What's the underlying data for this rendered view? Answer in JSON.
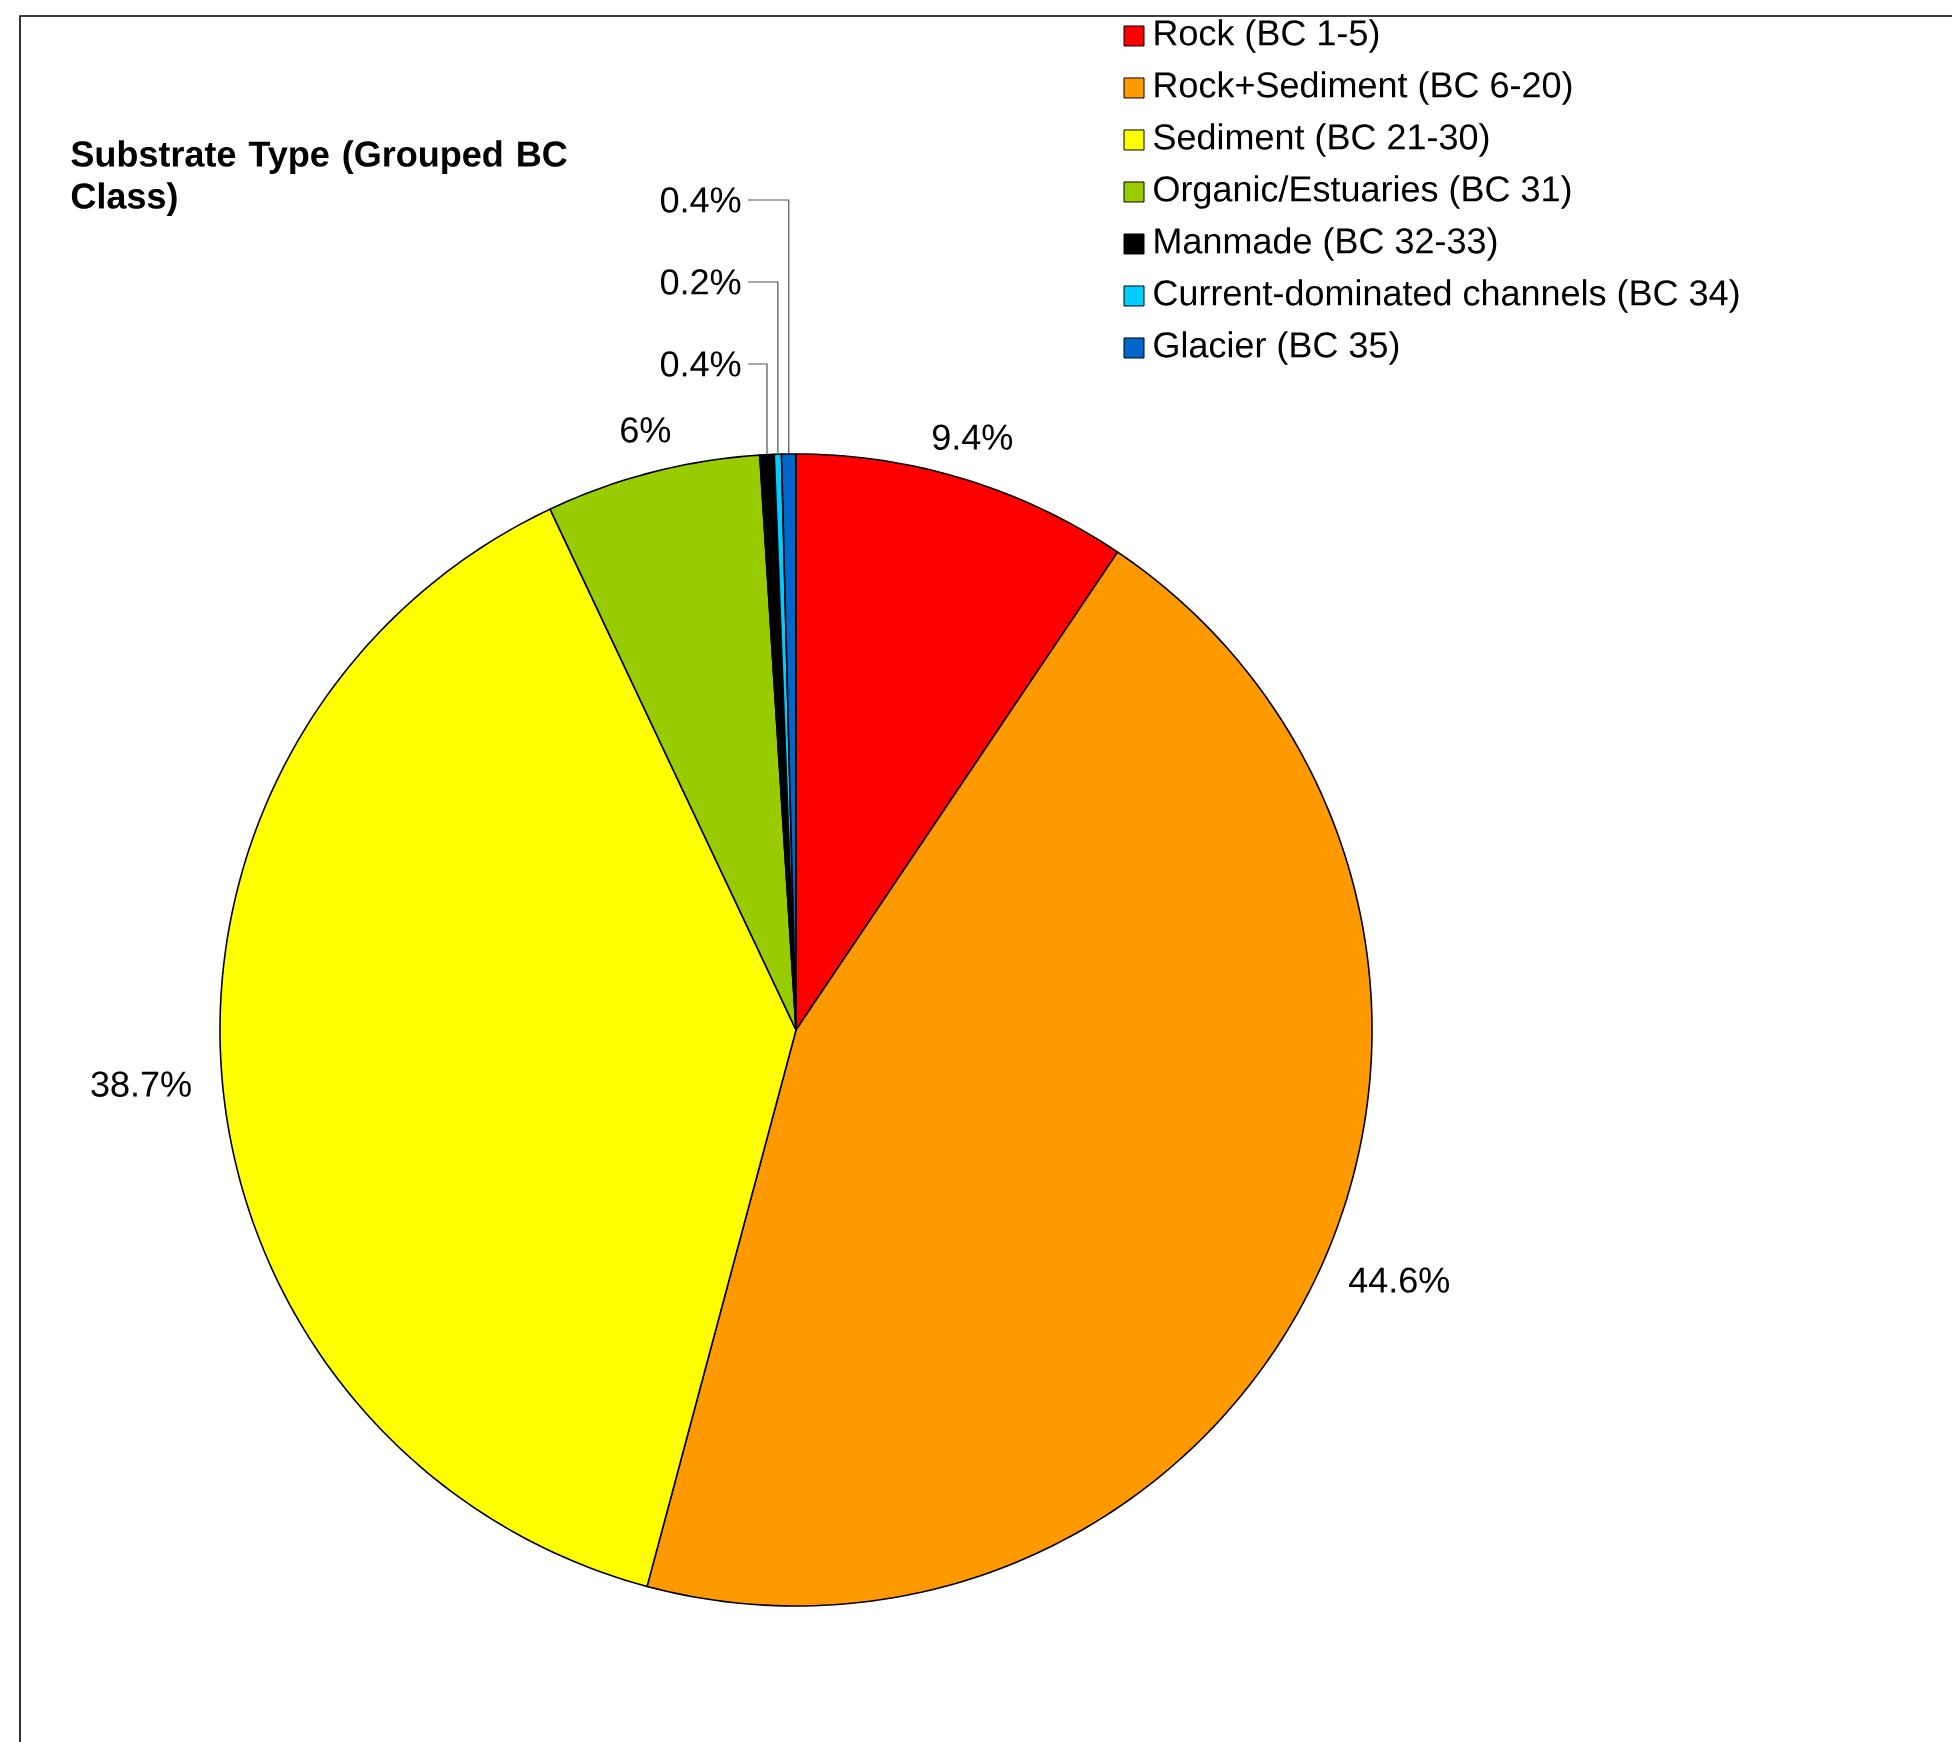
{
  "chart_data": {
    "type": "pie",
    "title": "Substrate Type (Grouped BC Class)",
    "categories": [
      "Rock (BC 1-5)",
      "Rock+Sediment (BC 6-20)",
      "Sediment (BC 21-30)",
      "Organic/Estuaries (BC 31)",
      "Manmade (BC 32-33)",
      "Current-dominated channels (BC 34)",
      "Glacier (BC 35)"
    ],
    "values": [
      9.4,
      44.6,
      38.7,
      6,
      0.4,
      0.2,
      0.4
    ],
    "value_labels": [
      "9.4%",
      "44.6%",
      "38.7%",
      "6%",
      "0.4%",
      "0.2%",
      "0.4%"
    ],
    "colors": [
      "#ff0000",
      "#ff9900",
      "#ffff00",
      "#99cc00",
      "#000000",
      "#00ccff",
      "#0066cc"
    ],
    "legend": "top right"
  }
}
